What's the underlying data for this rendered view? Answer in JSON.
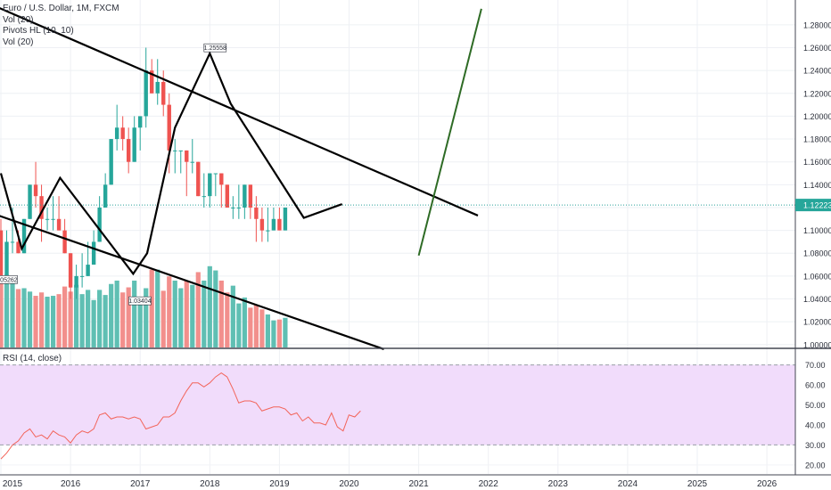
{
  "header": {
    "title": "Euro / U.S. Dollar, 1M, FXCM",
    "indicators": [
      "Vol (20)",
      "Pivots HL (10, 10)",
      "Vol (20)"
    ]
  },
  "rsi_panel": {
    "label": "RSI (14, close)"
  },
  "colors": {
    "up": "#26a69a",
    "down": "#ef5350",
    "up_volume": "#5fbfb3",
    "down_volume": "#f28f8c",
    "trendline": "#000000",
    "projection": "#2e6b25",
    "rsi_line": "#f2645a",
    "rsi_band": "#f1dcfb",
    "price_line": "#2aa09b",
    "price_label_bg": "#26a69a"
  },
  "chart_data": [
    {
      "type": "candlestick",
      "title": "Euro / U.S. Dollar, 1M, FXCM",
      "x_ticks": [
        "2015",
        "2016",
        "2017",
        "2018",
        "2019",
        "2020",
        "2021",
        "2022",
        "2023",
        "2024",
        "2025",
        "2026"
      ],
      "y_ticks": [
        "1.00000",
        "1.02000",
        "1.04000",
        "1.06000",
        "1.08000",
        "1.10000",
        "1.12000",
        "1.14000",
        "1.16000",
        "1.18000",
        "1.20000",
        "1.22000",
        "1.24000",
        "1.26000",
        "1.28000"
      ],
      "ylim": [
        0.9975,
        1.2955
      ],
      "last_price": "1.12223",
      "pivot_labels": [
        {
          "text": "1.25558",
          "date": 2018.0,
          "price": 1.25558
        },
        {
          "text": "1.05262",
          "date": 2015.0,
          "price": 1.05262
        },
        {
          "text": "1.03404",
          "date": 2016.92,
          "price": 1.03404
        }
      ],
      "candles_monthly": [
        [
          1.19,
          1.21,
          1.1,
          1.13
        ],
        [
          1.13,
          1.14,
          1.09,
          1.12
        ],
        [
          1.12,
          1.12,
          1.08,
          1.1
        ],
        [
          1.1,
          1.14,
          1.05,
          1.08
        ],
        [
          1.08,
          1.15,
          1.07,
          1.12
        ],
        [
          1.12,
          1.13,
          1.08,
          1.1
        ],
        [
          1.1,
          1.15,
          1.09,
          1.12
        ],
        [
          1.12,
          1.13,
          1.08,
          1.1
        ],
        [
          1.1,
          1.17,
          1.09,
          1.12
        ],
        [
          1.12,
          1.15,
          1.1,
          1.12
        ],
        [
          1.12,
          1.14,
          1.09,
          1.1
        ],
        [
          1.1,
          1.11,
          1.06,
          1.06
        ],
        [
          1.06,
          1.1,
          1.06,
          1.09
        ],
        [
          1.09,
          1.12,
          1.08,
          1.09
        ],
        [
          1.09,
          1.1,
          1.08,
          1.08
        ],
        [
          1.08,
          1.11,
          1.08,
          1.11
        ],
        [
          1.11,
          1.14,
          1.11,
          1.14
        ],
        [
          1.14,
          1.16,
          1.12,
          1.13
        ],
        [
          1.13,
          1.14,
          1.09,
          1.11
        ],
        [
          1.11,
          1.12,
          1.1,
          1.11
        ],
        [
          1.11,
          1.13,
          1.1,
          1.11
        ],
        [
          1.11,
          1.13,
          1.1,
          1.1
        ],
        [
          1.1,
          1.11,
          1.08,
          1.08
        ],
        [
          1.08,
          1.08,
          1.04,
          1.05
        ],
        [
          1.05,
          1.07,
          1.04,
          1.06
        ],
        [
          1.06,
          1.08,
          1.05,
          1.06
        ],
        [
          1.06,
          1.09,
          1.06,
          1.07
        ],
        [
          1.07,
          1.1,
          1.07,
          1.09
        ],
        [
          1.09,
          1.13,
          1.09,
          1.12
        ],
        [
          1.12,
          1.15,
          1.12,
          1.14
        ],
        [
          1.14,
          1.18,
          1.14,
          1.18
        ],
        [
          1.18,
          1.21,
          1.17,
          1.19
        ],
        [
          1.19,
          1.2,
          1.17,
          1.18
        ],
        [
          1.18,
          1.19,
          1.15,
          1.16
        ],
        [
          1.16,
          1.2,
          1.16,
          1.19
        ],
        [
          1.19,
          1.2,
          1.17,
          1.2
        ],
        [
          1.2,
          1.26,
          1.19,
          1.24
        ],
        [
          1.24,
          1.25,
          1.22,
          1.22
        ],
        [
          1.22,
          1.25,
          1.21,
          1.23
        ],
        [
          1.23,
          1.24,
          1.2,
          1.21
        ],
        [
          1.21,
          1.22,
          1.15,
          1.17
        ],
        [
          1.17,
          1.18,
          1.15,
          1.17
        ],
        [
          1.17,
          1.17,
          1.15,
          1.17
        ],
        [
          1.17,
          1.17,
          1.13,
          1.16
        ],
        [
          1.16,
          1.18,
          1.15,
          1.16
        ],
        [
          1.16,
          1.16,
          1.13,
          1.13
        ],
        [
          1.13,
          1.15,
          1.12,
          1.13
        ],
        [
          1.13,
          1.15,
          1.12,
          1.15
        ],
        [
          1.15,
          1.15,
          1.13,
          1.15
        ],
        [
          1.15,
          1.15,
          1.12,
          1.14
        ],
        [
          1.14,
          1.14,
          1.12,
          1.12
        ],
        [
          1.12,
          1.13,
          1.11,
          1.12
        ],
        [
          1.12,
          1.14,
          1.11,
          1.12
        ],
        [
          1.12,
          1.14,
          1.11,
          1.14
        ],
        [
          1.14,
          1.14,
          1.11,
          1.12
        ],
        [
          1.12,
          1.13,
          1.09,
          1.11
        ],
        [
          1.11,
          1.12,
          1.09,
          1.1
        ],
        [
          1.1,
          1.12,
          1.09,
          1.1
        ],
        [
          1.1,
          1.12,
          1.1,
          1.11
        ],
        [
          1.11,
          1.12,
          1.1,
          1.1
        ],
        [
          1.1,
          1.12,
          1.1,
          1.12
        ]
      ],
      "volume_relative": [
        0.69,
        0.78,
        0.84,
        0.78,
        0.85,
        0.73,
        0.77,
        0.69,
        0.73,
        0.7,
        0.62,
        0.81,
        0.86,
        0.8,
        0.69,
        0.7,
        0.66,
        0.61,
        0.65,
        0.6,
        0.61,
        0.63,
        0.72,
        0.66,
        0.74,
        0.63,
        0.68,
        0.56,
        0.68,
        0.62,
        0.75,
        0.79,
        0.65,
        0.71,
        0.79,
        0.6,
        0.7,
        0.92,
        0.92,
        0.67,
        0.84,
        0.79,
        0.7,
        0.79,
        0.74,
        0.89,
        0.79,
        0.96,
        0.91,
        0.79,
        0.65,
        0.73,
        0.52,
        0.59,
        0.47,
        0.5,
        0.45,
        0.39,
        0.32,
        0.33,
        0.35
      ],
      "trendlines": [
        {
          "name": "upper-resistance",
          "points": [
            [
              2014.4,
              1.31
            ],
            [
              2021.85,
              1.113
            ]
          ]
        },
        {
          "name": "lower-support",
          "points": [
            [
              2014.4,
              1.125
            ],
            [
              2020.5,
              0.996
            ]
          ]
        },
        {
          "name": "zigzag",
          "points": [
            [
              2015.0,
              1.15
            ],
            [
              2015.3,
              1.084
            ],
            [
              2015.85,
              1.146
            ],
            [
              2016.9,
              1.062
            ],
            [
              2017.1,
              1.08
            ],
            [
              2017.5,
              1.19
            ],
            [
              2018.0,
              1.255
            ],
            [
              2018.3,
              1.211
            ],
            [
              2019.35,
              1.111
            ],
            [
              2019.9,
              1.123
            ]
          ]
        },
        {
          "name": "projection",
          "points": [
            [
              2021.0,
              1.078
            ],
            [
              2021.9,
              1.294
            ]
          ]
        }
      ]
    },
    {
      "type": "line",
      "title": "RSI (14, close)",
      "y_ticks": [
        "20.00",
        "30.00",
        "40.00",
        "50.00",
        "60.00",
        "70.00"
      ],
      "ylim": [
        15.5,
        76.5
      ],
      "band": [
        30,
        70
      ],
      "x_start": 2015.0,
      "x_step": 0.0833,
      "values": [
        23,
        26,
        30,
        32,
        36,
        38,
        34,
        35,
        33,
        37,
        35,
        34,
        31,
        35,
        37,
        36,
        38,
        45,
        46,
        43,
        44,
        44,
        43,
        44,
        43,
        38,
        39,
        40,
        44,
        44,
        46,
        52,
        57,
        61,
        61,
        59,
        61,
        64,
        66,
        64,
        58,
        51,
        52,
        52,
        51,
        47,
        48,
        49,
        49,
        48,
        45,
        46,
        42,
        44,
        41,
        41,
        40,
        46,
        39,
        37,
        45,
        44,
        47
      ]
    }
  ]
}
